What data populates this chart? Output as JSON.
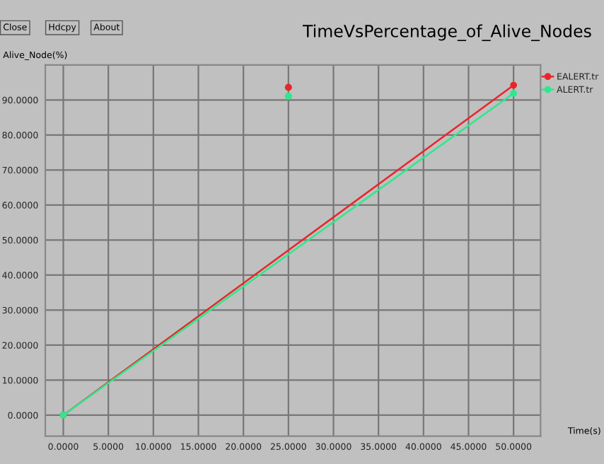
{
  "chart_data": {
    "type": "line",
    "title": "TimeVsPercentage_of_Alive_Nodes",
    "xlabel": "Time(s)",
    "ylabel": "Alive_Node(%)",
    "annotations": [
      "Close",
      "Hdcpy",
      "About"
    ],
    "series": [
      {
        "name": "EALERT.tr",
        "color": "#e8262a",
        "x": [
          0,
          50
        ],
        "values": [
          0,
          94.2
        ]
      },
      {
        "name": "ALERT.tr",
        "color": "#2ee88c",
        "x": [
          0,
          50
        ],
        "values": [
          0,
          91.9
        ]
      },
      {
        "type": "scatter",
        "color": "#e8262a",
        "x": [
          25
        ],
        "values": [
          93.6
        ]
      },
      {
        "type": "scatter",
        "color": "#2ee88c",
        "x": [
          25
        ],
        "values": [
          91.1
        ]
      }
    ],
    "xlim": [
      -2,
      53
    ],
    "ylim": [
      -6,
      100
    ],
    "xticks": [
      {
        "value": 0,
        "label": "0.0000"
      },
      {
        "value": 5,
        "label": "5.0000"
      },
      {
        "value": 10,
        "label": "10.0000"
      },
      {
        "value": 15,
        "label": "15.0000"
      },
      {
        "value": 20,
        "label": "20.0000"
      },
      {
        "value": 25,
        "label": "25.0000"
      },
      {
        "value": 30,
        "label": "30.0000"
      },
      {
        "value": 35,
        "label": "35.0000"
      },
      {
        "value": 40,
        "label": "40.0000"
      },
      {
        "value": 45,
        "label": "45.0000"
      },
      {
        "value": 50,
        "label": "50.0000"
      }
    ],
    "yticks": [
      {
        "value": 0,
        "label": "0.0000"
      },
      {
        "value": 10,
        "label": "10.0000"
      },
      {
        "value": 20,
        "label": "20.0000"
      },
      {
        "value": 30,
        "label": "30.0000"
      },
      {
        "value": 40,
        "label": "40.0000"
      },
      {
        "value": 50,
        "label": "50.0000"
      },
      {
        "value": 60,
        "label": "60.0000"
      },
      {
        "value": 70,
        "label": "70.0000"
      },
      {
        "value": 80,
        "label": "80.0000"
      },
      {
        "value": 90,
        "label": "90.0000"
      }
    ],
    "grid": true,
    "legend": "top right",
    "marker": "circle",
    "line_style": "solid"
  }
}
